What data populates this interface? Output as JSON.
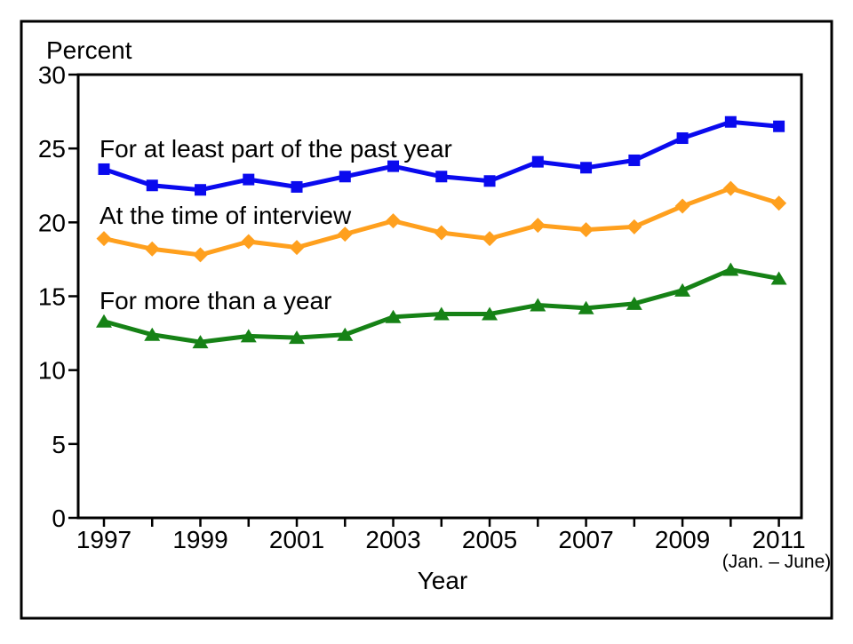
{
  "figure": {
    "border_color": "#000000",
    "background": "#ffffff"
  },
  "chart_data": {
    "type": "line",
    "title": "",
    "ylabel": "Percent",
    "xlabel": "Year",
    "x_note": "(Jan. – June)",
    "x": [
      1997,
      1998,
      1999,
      2000,
      2001,
      2002,
      2003,
      2004,
      2005,
      2006,
      2007,
      2008,
      2009,
      2010,
      2011
    ],
    "xtick_label_years": [
      1997,
      1999,
      2001,
      2003,
      2005,
      2007,
      2009,
      2011
    ],
    "ylim": [
      0,
      30
    ],
    "ytick_step": 5,
    "grid": false,
    "legend_position": "inline-labels",
    "series": [
      {
        "id": "at-least-part-of-past-year",
        "name": "For at least part of the past year",
        "color": "#0a0aee",
        "marker": "square",
        "values": [
          23.6,
          22.5,
          22.2,
          22.9,
          22.4,
          23.1,
          23.8,
          23.1,
          22.8,
          24.1,
          23.7,
          24.2,
          25.7,
          26.8,
          26.5
        ]
      },
      {
        "id": "at-time-of-interview",
        "name": "At the time of interview",
        "color": "#ffa01e",
        "marker": "diamond",
        "values": [
          18.9,
          18.2,
          17.8,
          18.7,
          18.3,
          19.2,
          20.1,
          19.3,
          18.9,
          19.8,
          19.5,
          19.7,
          21.1,
          22.3,
          21.3
        ]
      },
      {
        "id": "more-than-a-year",
        "name": "For more than a year",
        "color": "#168216",
        "marker": "triangle",
        "values": [
          13.3,
          12.4,
          11.9,
          12.3,
          12.2,
          12.4,
          13.6,
          13.8,
          13.8,
          14.4,
          14.2,
          14.5,
          15.4,
          16.8,
          16.2
        ]
      }
    ]
  }
}
